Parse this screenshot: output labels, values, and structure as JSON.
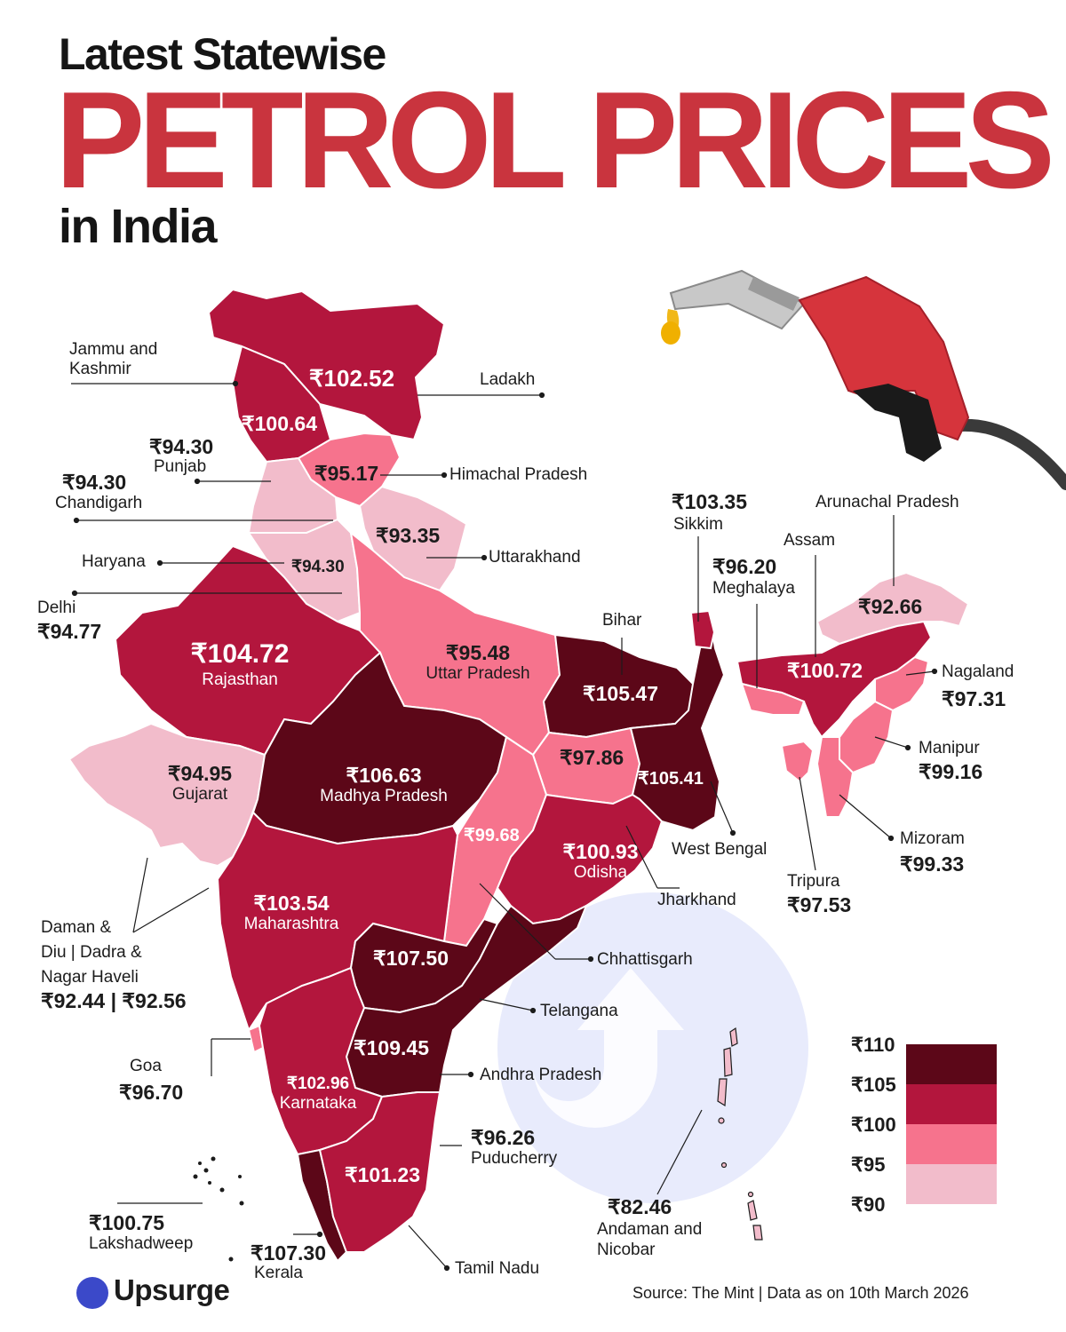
{
  "title": {
    "line1": "Latest Statewise",
    "line2": "PETROL PRICES",
    "line3": "in India"
  },
  "colors": {
    "band_90_95": "#f2bccb",
    "band_95_100": "#f6738d",
    "band_100_105": "#b3163d",
    "band_105_110": "#5c0718",
    "title_red": "#c9343e",
    "watermark": "#e3e7fb"
  },
  "legend": {
    "ticks": [
      "₹110",
      "₹105",
      "₹100",
      "₹95",
      "₹90"
    ]
  },
  "states": {
    "jammu_kashmir": {
      "name": "Jammu and\nKashmir",
      "price": "₹100.64"
    },
    "ladakh": {
      "name": "Ladakh",
      "price": "₹102.52"
    },
    "punjab": {
      "name": "Punjab",
      "price": "₹94.30"
    },
    "chandigarh": {
      "name": "Chandigarh",
      "price": "₹94.30"
    },
    "himachal": {
      "name": "Himachal Pradesh",
      "price": "₹95.17"
    },
    "uttarakhand": {
      "name": "Uttarakhand",
      "price": "₹93.35"
    },
    "haryana": {
      "name": "Haryana",
      "price": "₹94.30"
    },
    "delhi": {
      "name": "Delhi",
      "price": "₹94.77"
    },
    "rajasthan": {
      "name": "Rajasthan",
      "price": "₹104.72"
    },
    "uttar_pradesh": {
      "name": "Uttar Pradesh",
      "price": "₹95.48"
    },
    "bihar": {
      "name": "Bihar",
      "price": "₹105.47"
    },
    "sikkim": {
      "name": "Sikkim",
      "price": "₹103.35"
    },
    "arunachal": {
      "name": "Arunachal Pradesh",
      "price": "₹92.66"
    },
    "assam": {
      "name": "Assam",
      "price": "₹100.72"
    },
    "meghalaya": {
      "name": "Meghalaya",
      "price": "₹96.20"
    },
    "nagaland": {
      "name": "Nagaland",
      "price": "₹97.31"
    },
    "manipur": {
      "name": "Manipur",
      "price": "₹99.16"
    },
    "mizoram": {
      "name": "Mizoram",
      "price": "₹99.33"
    },
    "tripura": {
      "name": "Tripura",
      "price": "₹97.53"
    },
    "gujarat": {
      "name": "Gujarat",
      "price": "₹94.95"
    },
    "madhya_pradesh": {
      "name": "Madhya Pradesh",
      "price": "₹106.63"
    },
    "jharkhand": {
      "name": "Jharkhand",
      "price": "₹97.86"
    },
    "west_bengal": {
      "name": "West Bengal",
      "price": "₹105.41"
    },
    "chhattisgarh": {
      "name": "Chhattisgarh",
      "price": "₹99.68"
    },
    "odisha": {
      "name": "Odisha",
      "price": "₹100.93"
    },
    "daman_dnh": {
      "name_l1": "Daman &",
      "name_l2": "Diu | Dadra &",
      "name_l3": "Nagar Haveli",
      "price": "₹92.44 | ₹92.56"
    },
    "maharashtra": {
      "name": "Maharashtra",
      "price": "₹103.54"
    },
    "telangana": {
      "name": "Telangana",
      "price": "₹107.50"
    },
    "andhra_pradesh": {
      "name": "Andhra Pradesh",
      "price": "₹109.45"
    },
    "goa": {
      "name": "Goa",
      "price": "₹96.70"
    },
    "karnataka": {
      "name": "Karnataka",
      "price": "₹102.96"
    },
    "puducherry": {
      "name": "Puducherry",
      "price": "₹96.26"
    },
    "andaman": {
      "name_l1": "Andaman and",
      "name_l2": "Nicobar",
      "price": "₹82.46"
    },
    "tamil_nadu": {
      "name": "Tamil Nadu",
      "price": "₹101.23"
    },
    "lakshadweep": {
      "name": "Lakshadweep",
      "price": "₹100.75"
    },
    "kerala": {
      "name": "Kerala",
      "price": "₹107.30"
    }
  },
  "footer": {
    "brand": "Upsurge",
    "source": "Source: The Mint | Data as on 10th March 2026"
  }
}
